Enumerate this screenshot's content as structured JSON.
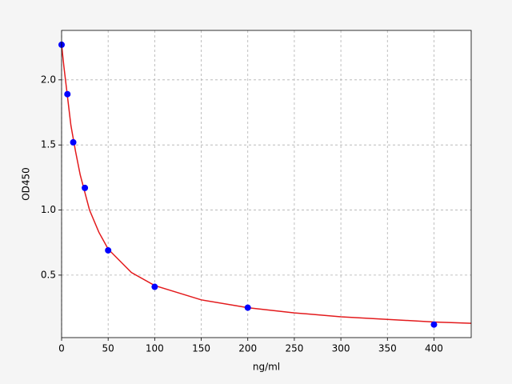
{
  "chart_data": {
    "type": "scatter",
    "xlabel": "ng/ml",
    "ylabel": "OD450",
    "xlim": [
      0,
      440
    ],
    "ylim": [
      0.02,
      2.38
    ],
    "xticks": [
      0,
      50,
      100,
      150,
      200,
      250,
      300,
      350,
      400
    ],
    "yticks": [
      0.5,
      {
        "value": 1.0,
        "label": "1.0"
      },
      1.5,
      {
        "value": 2.0,
        "label": "2.0"
      }
    ],
    "grid": true,
    "series": [
      {
        "type": "line",
        "color": "#e31a1c",
        "x": [
          0,
          2.5,
          5,
          10,
          15,
          20,
          30,
          40,
          50,
          75,
          100,
          150,
          200,
          250,
          300,
          350,
          400,
          440
        ],
        "values": [
          2.27,
          2.1,
          1.95,
          1.65,
          1.45,
          1.27,
          1.0,
          0.83,
          0.7,
          0.52,
          0.42,
          0.31,
          0.25,
          0.21,
          0.18,
          0.16,
          0.14,
          0.13
        ]
      },
      {
        "type": "scatter",
        "color": "#0000ff",
        "x": [
          0,
          6.25,
          12.5,
          25,
          50,
          100,
          200,
          400
        ],
        "values": [
          2.27,
          1.89,
          1.52,
          1.17,
          0.69,
          0.41,
          0.25,
          0.12
        ]
      }
    ]
  }
}
